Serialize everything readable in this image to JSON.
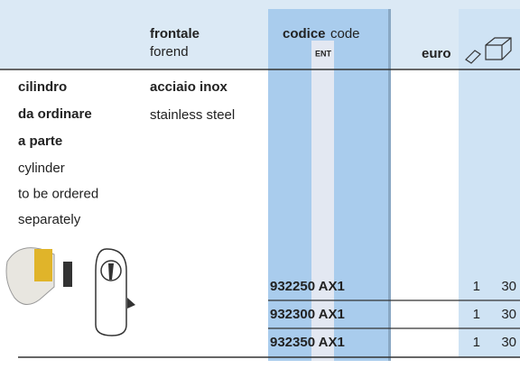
{
  "header": {
    "forend_it": "frontale",
    "forend_en": "forend",
    "code_it": "codice",
    "code_en": "code",
    "code_type": "ENT",
    "price": "euro"
  },
  "description": {
    "lines_bold": [
      "cilindro",
      "da ordinare",
      "a parte"
    ],
    "lines": [
      "cylinder",
      "to be ordered",
      "separately"
    ]
  },
  "material": {
    "it": "acciaio inox",
    "en": "stainless steel"
  },
  "rows": [
    {
      "code": "932250 AX1",
      "qty": "1",
      "pack": "30"
    },
    {
      "code": "932300 AX1",
      "qty": "1",
      "pack": "30"
    },
    {
      "code": "932350 AX1",
      "qty": "1",
      "pack": "30"
    }
  ]
}
